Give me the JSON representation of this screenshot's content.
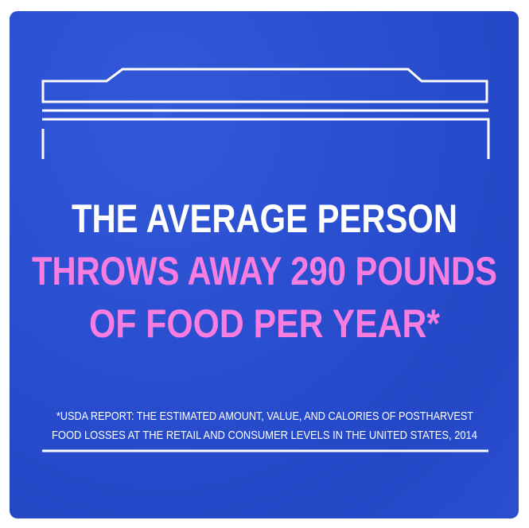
{
  "headline": {
    "line1": "THE AVERAGE PERSON",
    "line2": "THROWS AWAY 290 POUNDS",
    "line3": "OF FOOD PER YEAR*"
  },
  "footnote": {
    "line1": "*USDA REPORT: THE ESTIMATED AMOUNT, VALUE, AND CALORIES OF POSTHARVEST",
    "line2": "FOOD LOSSES AT THE RETAIL AND CONSUMER LEVELS IN THE UNITED STATES, 2014"
  },
  "colors": {
    "background": "#2a4fcf",
    "headline_white": "#ffffff",
    "headline_pink": "#f77de0",
    "lines": "#ffffff"
  }
}
